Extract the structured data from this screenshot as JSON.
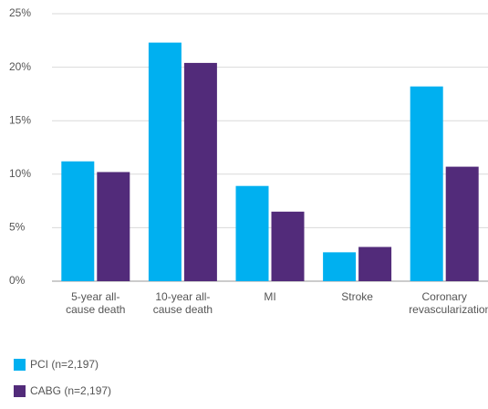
{
  "chart_data": {
    "type": "bar",
    "categories": [
      "5-year all-cause death",
      "10-year all-cause death",
      "MI",
      "Stroke",
      "Coronary revascularization"
    ],
    "series": [
      {
        "name": "PCI (n=2,197)",
        "color": "#00b0f0",
        "values": [
          11.2,
          22.3,
          8.9,
          2.7,
          18.2
        ]
      },
      {
        "name": "CABG (n=2,197)",
        "color": "#522b7a",
        "values": [
          10.2,
          20.4,
          6.5,
          3.2,
          10.7
        ]
      }
    ],
    "ylim": [
      0,
      25
    ],
    "yticks": [
      {
        "value": 0,
        "label": "0%"
      },
      {
        "value": 5,
        "label": "5%"
      },
      {
        "value": 10,
        "label": "10%"
      },
      {
        "value": 15,
        "label": "15%"
      },
      {
        "value": 20,
        "label": "20%"
      },
      {
        "value": 25,
        "label": "25%"
      }
    ],
    "grid": true
  }
}
